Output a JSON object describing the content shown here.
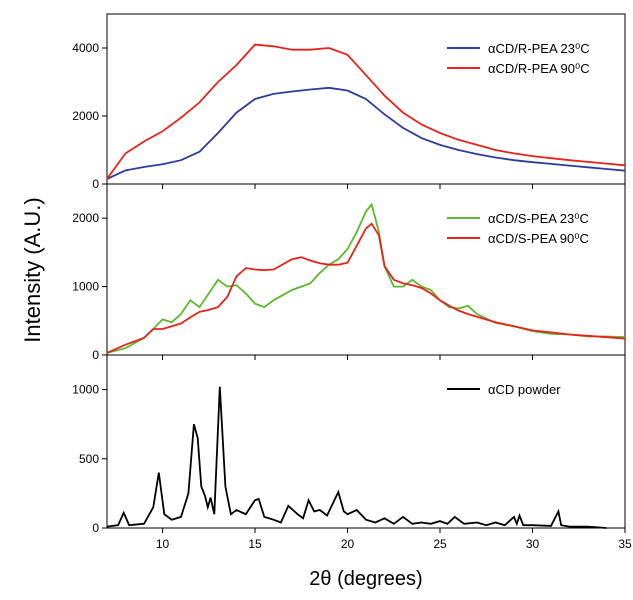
{
  "chart_data": [
    {
      "type": "line",
      "xlim": [
        7,
        35
      ],
      "ylim": [
        0,
        5000
      ],
      "yticks": [
        0,
        2000,
        4000
      ],
      "legend": "upper right",
      "x": [
        7,
        8,
        9,
        10,
        11,
        12,
        13,
        14,
        15,
        16,
        17,
        18,
        19,
        20,
        21,
        22,
        23,
        24,
        25,
        26,
        27,
        28,
        29,
        30,
        31,
        32,
        33,
        34,
        35
      ],
      "series": [
        {
          "name": "αCD/R-PEA 23⁰C",
          "color": "#2c3e9a",
          "values": [
            150,
            400,
            500,
            580,
            700,
            950,
            1500,
            2100,
            2500,
            2650,
            2720,
            2780,
            2830,
            2750,
            2500,
            2050,
            1650,
            1350,
            1150,
            1000,
            880,
            780,
            700,
            640,
            590,
            540,
            490,
            440,
            390
          ]
        },
        {
          "name": "αCD/R-PEA 90⁰C",
          "color": "#e8221c",
          "values": [
            150,
            900,
            1250,
            1550,
            1950,
            2400,
            3000,
            3500,
            4100,
            4050,
            3950,
            3950,
            4000,
            3800,
            3200,
            2600,
            2100,
            1750,
            1500,
            1300,
            1150,
            1000,
            900,
            820,
            760,
            700,
            650,
            600,
            550
          ]
        }
      ]
    },
    {
      "type": "line",
      "xlim": [
        7,
        35
      ],
      "ylim": [
        0,
        2500
      ],
      "yticks": [
        0,
        1000,
        2000
      ],
      "legend": "upper right",
      "ylabel": "Intensity (A.U.)",
      "x": [
        7,
        8,
        9,
        9.5,
        10,
        10.5,
        11,
        11.5,
        12,
        12.5,
        13,
        13.5,
        14,
        14.5,
        15,
        15.5,
        16,
        17,
        17.5,
        18,
        18.5,
        19,
        19.5,
        20,
        20.5,
        21,
        21.3,
        21.7,
        22,
        22.5,
        23,
        23.5,
        24,
        24.5,
        25,
        25.5,
        26,
        26.5,
        27,
        28,
        29,
        30,
        31,
        32,
        33,
        34,
        35
      ],
      "series": [
        {
          "name": "αCD/S-PEA 23⁰C",
          "color": "#5cb82e",
          "values": [
            30,
            100,
            250,
            380,
            520,
            480,
            600,
            800,
            700,
            900,
            1100,
            1000,
            1020,
            900,
            750,
            700,
            800,
            950,
            1000,
            1050,
            1200,
            1320,
            1400,
            1550,
            1800,
            2100,
            2200,
            1800,
            1300,
            1000,
            1000,
            1100,
            1000,
            950,
            800,
            700,
            680,
            720,
            600,
            470,
            420,
            350,
            310,
            300,
            270,
            270,
            260
          ]
        },
        {
          "name": "αCD/S-PEA 90⁰C",
          "color": "#e8221c",
          "values": [
            30,
            150,
            250,
            380,
            380,
            420,
            460,
            550,
            630,
            660,
            700,
            850,
            1150,
            1270,
            1250,
            1240,
            1250,
            1400,
            1430,
            1380,
            1340,
            1320,
            1320,
            1350,
            1600,
            1850,
            1920,
            1750,
            1300,
            1100,
            1050,
            1020,
            980,
            900,
            800,
            720,
            650,
            600,
            560,
            480,
            420,
            360,
            330,
            300,
            280,
            260,
            240
          ]
        }
      ]
    },
    {
      "type": "line",
      "xlim": [
        7,
        35
      ],
      "ylim": [
        0,
        1250
      ],
      "yticks": [
        0,
        500,
        1000
      ],
      "xticks": [
        10,
        15,
        20,
        25,
        30,
        35
      ],
      "xlabel": "2θ (degrees)",
      "legend": "upper right",
      "x": [
        7,
        7.6,
        7.9,
        8.2,
        9,
        9.5,
        9.8,
        10.1,
        10.5,
        11,
        11.4,
        11.7,
        11.9,
        12.1,
        12.3,
        12.45,
        12.6,
        12.8,
        13.1,
        13.4,
        13.7,
        14,
        14.5,
        15,
        15.2,
        15.5,
        16,
        16.4,
        16.8,
        17.3,
        17.6,
        17.9,
        18.2,
        18.5,
        18.9,
        19.5,
        19.8,
        20,
        20.5,
        21,
        21.5,
        22,
        22.5,
        23,
        23.5,
        24,
        24.5,
        25,
        25.4,
        25.8,
        26.3,
        27,
        27.5,
        28,
        28.5,
        29,
        29.15,
        29.3,
        29.5,
        30,
        31,
        31.4,
        31.55,
        32,
        33,
        34
      ],
      "series": [
        {
          "name": "αCD powder",
          "color": "#000000",
          "values": [
            10,
            20,
            110,
            20,
            30,
            150,
            400,
            100,
            60,
            80,
            250,
            750,
            650,
            300,
            230,
            150,
            220,
            100,
            1020,
            300,
            100,
            130,
            100,
            200,
            210,
            80,
            60,
            40,
            160,
            100,
            70,
            200,
            120,
            130,
            90,
            260,
            120,
            100,
            130,
            60,
            40,
            70,
            30,
            80,
            30,
            40,
            30,
            50,
            30,
            80,
            30,
            40,
            20,
            40,
            20,
            80,
            30,
            90,
            20,
            20,
            15,
            120,
            20,
            10,
            10,
            0
          ]
        }
      ]
    }
  ]
}
